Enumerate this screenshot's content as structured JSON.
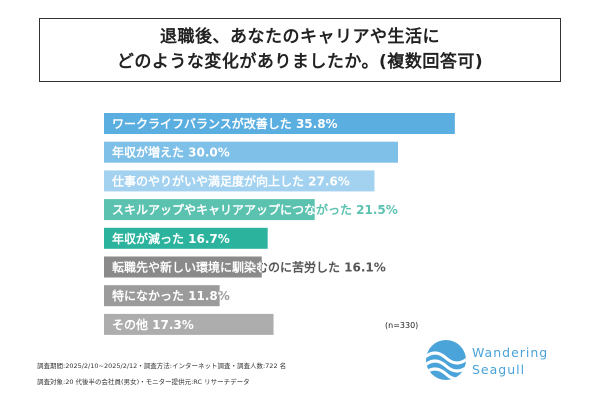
{
  "title": {
    "line1": "退職後、あなたのキャリアや生活に",
    "line2": "どのような変化がありましたか。(複数回答可)"
  },
  "chart_data": {
    "type": "bar",
    "orientation": "horizontal",
    "xlim": [
      0,
      40
    ],
    "categories": [
      "ワークライフバランスが改善した",
      "年収が増えた",
      "仕事のやりがいや満足度が向上した",
      "スキルアップやキャリアアップにつながった",
      "年収が減った",
      "転職先や新しい環境に馴染むのに苦労した",
      "特になかった",
      "その他"
    ],
    "values": [
      35.8,
      30.0,
      27.6,
      21.5,
      16.7,
      16.1,
      11.8,
      17.3
    ],
    "value_labels": [
      "35.8%",
      "30.0%",
      "27.6%",
      "21.5%",
      "16.7%",
      "16.1%",
      "11.8%",
      "17.3%"
    ],
    "colors": [
      "#5aaee0",
      "#7fc0e8",
      "#a3d2f0",
      "#5cc2b0",
      "#2bb39e",
      "#8a8a8a",
      "#9b9b9b",
      "#adadad"
    ],
    "label_colors": [
      "#ffffff",
      "#ffffff",
      "#ffffff",
      "#ffffff",
      "#ffffff",
      "#ffffff",
      "#ffffff",
      "#ffffff"
    ],
    "overflow_label_colors": [
      "#5aaee0",
      "#7fc0e8",
      "#a3d2f0",
      "#5cc2b0",
      "#2bb39e",
      "#555555",
      "#9b9b9b",
      "#adadad"
    ],
    "note": "(n=330)"
  },
  "footer": {
    "line1": "調査期間:2025/2/10~2025/2/12・調査方法:インターネット調査・調査人数:722 名",
    "line2": "調査対象:20 代後半の会社員(男女)・モニター提供元:RC リサーチデータ"
  },
  "logo": {
    "line1": "Wandering",
    "line2": "Seagull",
    "color": "#4aa3d9",
    "icon": "wave-circle-icon"
  }
}
